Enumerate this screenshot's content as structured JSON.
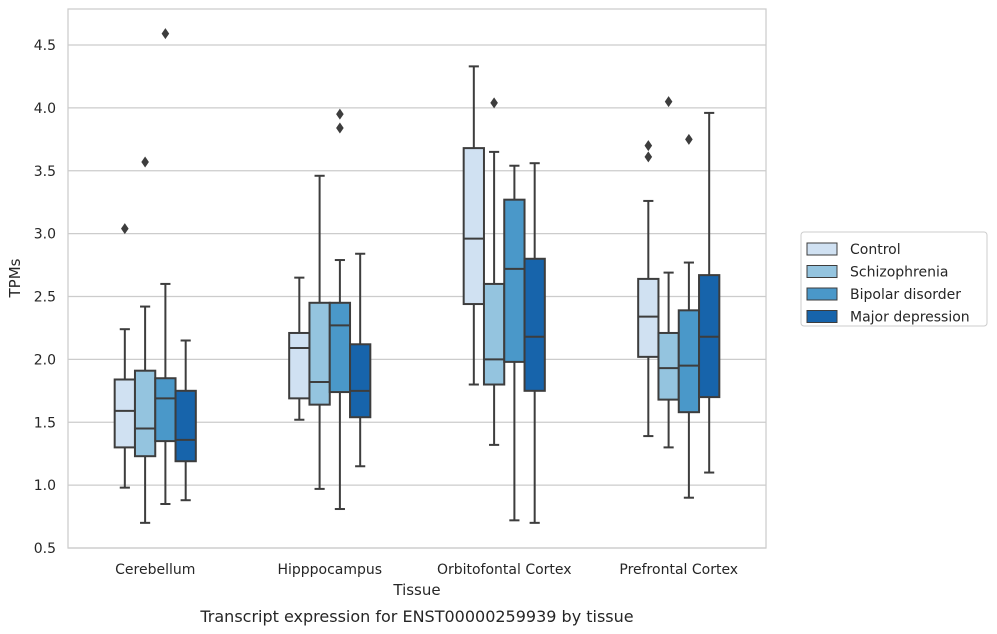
{
  "caption": "Transcript expression for ENST00000259939 by tissue",
  "chart_data": {
    "type": "boxplot",
    "title": "",
    "xlabel": "Tissue",
    "ylabel": "TPMs",
    "ylim": [
      0.5,
      4.8
    ],
    "yticks": [
      "0.5",
      "1.0",
      "1.5",
      "2.0",
      "2.5",
      "3.0",
      "3.5",
      "4.0",
      "4.5"
    ],
    "grid": "horizontal",
    "legend_position": "right",
    "categories": [
      "Cerebellum",
      "Hipppocampus",
      "Orbitofontal Cortex",
      "Prefrontal Cortex"
    ],
    "series": [
      {
        "name": "Control",
        "color": "#d0e1f2",
        "boxes": [
          {
            "whislo": 0.98,
            "q1": 1.3,
            "med": 1.59,
            "q3": 1.84,
            "whishi": 2.24,
            "fliers": [
              3.04
            ]
          },
          {
            "whislo": 1.52,
            "q1": 1.69,
            "med": 2.09,
            "q3": 2.21,
            "whishi": 2.65,
            "fliers": []
          },
          {
            "whislo": 1.8,
            "q1": 2.44,
            "med": 2.96,
            "q3": 3.68,
            "whishi": 4.33,
            "fliers": []
          },
          {
            "whislo": 1.39,
            "q1": 2.02,
            "med": 2.34,
            "q3": 2.64,
            "whishi": 3.26,
            "fliers": [
              3.61,
              3.7
            ]
          }
        ]
      },
      {
        "name": "Schizophrenia",
        "color": "#94c4df",
        "boxes": [
          {
            "whislo": 0.7,
            "q1": 1.23,
            "med": 1.45,
            "q3": 1.91,
            "whishi": 2.42,
            "fliers": [
              3.57
            ]
          },
          {
            "whislo": 0.97,
            "q1": 1.64,
            "med": 1.82,
            "q3": 2.45,
            "whishi": 3.46,
            "fliers": []
          },
          {
            "whislo": 1.32,
            "q1": 1.8,
            "med": 2.0,
            "q3": 2.6,
            "whishi": 3.65,
            "fliers": [
              4.04
            ]
          },
          {
            "whislo": 1.3,
            "q1": 1.68,
            "med": 1.93,
            "q3": 2.21,
            "whishi": 2.69,
            "fliers": [
              4.05
            ]
          }
        ]
      },
      {
        "name": "Bipolar disorder",
        "color": "#4a98c9",
        "boxes": [
          {
            "whislo": 0.85,
            "q1": 1.35,
            "med": 1.69,
            "q3": 1.85,
            "whishi": 2.6,
            "fliers": [
              4.59
            ]
          },
          {
            "whislo": 0.81,
            "q1": 1.74,
            "med": 2.27,
            "q3": 2.45,
            "whishi": 2.79,
            "fliers": [
              3.84,
              3.95
            ]
          },
          {
            "whislo": 0.72,
            "q1": 1.98,
            "med": 2.72,
            "q3": 3.27,
            "whishi": 3.54,
            "fliers": []
          },
          {
            "whislo": 0.9,
            "q1": 1.58,
            "med": 1.95,
            "q3": 2.39,
            "whishi": 2.77,
            "fliers": [
              3.75
            ]
          }
        ]
      },
      {
        "name": "Major depression",
        "color": "#1764ab",
        "boxes": [
          {
            "whislo": 0.88,
            "q1": 1.19,
            "med": 1.36,
            "q3": 1.75,
            "whishi": 2.15,
            "fliers": []
          },
          {
            "whislo": 1.15,
            "q1": 1.54,
            "med": 1.75,
            "q3": 2.12,
            "whishi": 2.84,
            "fliers": []
          },
          {
            "whislo": 0.7,
            "q1": 1.75,
            "med": 2.18,
            "q3": 2.8,
            "whishi": 3.56,
            "fliers": []
          },
          {
            "whislo": 1.1,
            "q1": 1.7,
            "med": 2.18,
            "q3": 2.67,
            "whishi": 3.96,
            "fliers": []
          }
        ]
      }
    ]
  }
}
